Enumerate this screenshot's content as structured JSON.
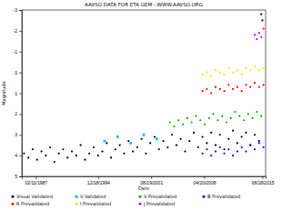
{
  "chart_data": {
    "type": "scatter",
    "title": "AAVSO DATA FOR ETA GEM - WWW.AAVSO.ORG",
    "xlabel": "Date",
    "ylabel": "Magnitude",
    "xlim": [
      2446200,
      2457400
    ],
    "xticks": [
      {
        "value": 2446838,
        "label": "02/11/1987"
      },
      {
        "value": 2449705,
        "label": "12/18/1994"
      },
      {
        "value": 2452141,
        "label": "08/19/2001"
      },
      {
        "value": 2454577,
        "label": "04/20/2008"
      },
      {
        "value": 2457253,
        "label": "08/18/2015"
      }
    ],
    "ylim": [
      5,
      -3
    ],
    "yticks": [
      5,
      4,
      3,
      2,
      1,
      0,
      -1,
      -2,
      -3
    ],
    "grid": false,
    "legend": "bottom",
    "series": [
      {
        "name": "Visual Validated",
        "color": "#000000",
        "marker": "circle",
        "x": [
          2446300,
          2446500,
          2446700,
          2446900,
          2447100,
          2447300,
          2447500,
          2447700,
          2447900,
          2448100,
          2448300,
          2448500,
          2448700,
          2448900,
          2449100,
          2449300,
          2449500,
          2449700,
          2449900,
          2450100,
          2450300,
          2450500,
          2450700,
          2450900,
          2451100,
          2451300,
          2451500,
          2451700,
          2451900,
          2452100,
          2452300,
          2452500,
          2452700,
          2452900,
          2453100,
          2453300,
          2453500,
          2453700,
          2453900,
          2454100,
          2454300,
          2454500,
          2454700,
          2454900,
          2455100,
          2455300,
          2455500,
          2455700,
          2455900,
          2456100,
          2456300,
          2456500,
          2456700,
          2456900,
          2457100,
          2457200,
          2457250
        ],
        "values": [
          3.9,
          4.1,
          3.7,
          4.2,
          3.8,
          4.0,
          3.6,
          4.3,
          3.9,
          3.7,
          4.1,
          3.8,
          4.0,
          3.5,
          4.2,
          3.9,
          3.6,
          4.0,
          3.8,
          3.4,
          4.1,
          3.7,
          3.5,
          3.9,
          3.3,
          3.8,
          3.6,
          3.2,
          3.9,
          3.4,
          3.1,
          3.7,
          3.3,
          3.6,
          3.0,
          3.5,
          3.2,
          3.8,
          3.3,
          2.9,
          3.6,
          3.1,
          3.4,
          2.9,
          3.5,
          3.0,
          3.7,
          3.2,
          2.8,
          3.4,
          3.1,
          2.9,
          3.5,
          3.0,
          3.3,
          -2.8,
          -2.5
        ]
      },
      {
        "name": "V Validated",
        "color": "#00cccc",
        "marker": "square",
        "x": [
          2450000,
          2450600,
          2451200,
          2451800,
          2452400
        ],
        "values": [
          3.3,
          3.1,
          3.4,
          3.0,
          3.2
        ]
      },
      {
        "name": "V Prevalidated",
        "color": "#00b000",
        "marker": "circle",
        "x": [
          2453000,
          2453200,
          2453400,
          2453600,
          2453800,
          2454000,
          2454200,
          2454400,
          2454600,
          2454800,
          2455000,
          2455200,
          2455400,
          2455600,
          2455800,
          2456000,
          2456200,
          2456400,
          2456600,
          2456800,
          2457000,
          2457200
        ],
        "values": [
          2.4,
          2.6,
          2.3,
          2.5,
          2.2,
          2.4,
          2.1,
          2.3,
          2.5,
          2.2,
          2.0,
          2.3,
          2.1,
          2.4,
          2.2,
          1.9,
          2.1,
          2.3,
          2.0,
          2.2,
          1.9,
          2.1
        ]
      },
      {
        "name": "B Prevalidated",
        "color": "#0000ff",
        "marker": "circle",
        "x": [
          2454500,
          2454700,
          2454900,
          2455100,
          2455300,
          2455500,
          2455700,
          2455900,
          2456100,
          2456300,
          2456500,
          2456700,
          2456900,
          2457100,
          2457300
        ],
        "values": [
          3.9,
          3.7,
          4.0,
          3.8,
          3.6,
          3.9,
          3.7,
          4.0,
          3.8,
          3.6,
          3.8,
          3.5,
          3.7,
          3.4,
          3.6
        ]
      },
      {
        "name": "R Prevalidated",
        "color": "#ff0000",
        "marker": "circle",
        "x": [
          2454500,
          2454700,
          2454900,
          2455100,
          2455300,
          2455500,
          2455700,
          2455900,
          2456100,
          2456300,
          2456500,
          2456700,
          2456900,
          2457100,
          2457300
        ],
        "values": [
          0.9,
          0.8,
          1.0,
          0.7,
          0.8,
          0.9,
          0.6,
          0.8,
          0.7,
          0.9,
          0.6,
          0.7,
          0.5,
          0.7,
          0.6
        ]
      },
      {
        "name": "I Prevalidated",
        "color": "#ffdd00",
        "marker": "circle",
        "x": [
          2454500,
          2454700,
          2454900,
          2455100,
          2455300,
          2455500,
          2455700,
          2455900,
          2456100,
          2456300,
          2456500,
          2456700,
          2456900,
          2457100,
          2457300
        ],
        "values": [
          0.1,
          0.0,
          0.2,
          -0.1,
          0.0,
          0.1,
          -0.2,
          0.0,
          -0.1,
          0.1,
          -0.2,
          -0.1,
          -0.3,
          -0.1,
          -0.2
        ]
      },
      {
        "name": "J Prevalidated",
        "color": "#cc00cc",
        "marker": "circle",
        "x": [
          2456900,
          2457000,
          2457100,
          2457200,
          2457300
        ],
        "values": [
          -1.8,
          -1.6,
          -1.9,
          -1.7,
          -2.1
        ]
      }
    ]
  }
}
